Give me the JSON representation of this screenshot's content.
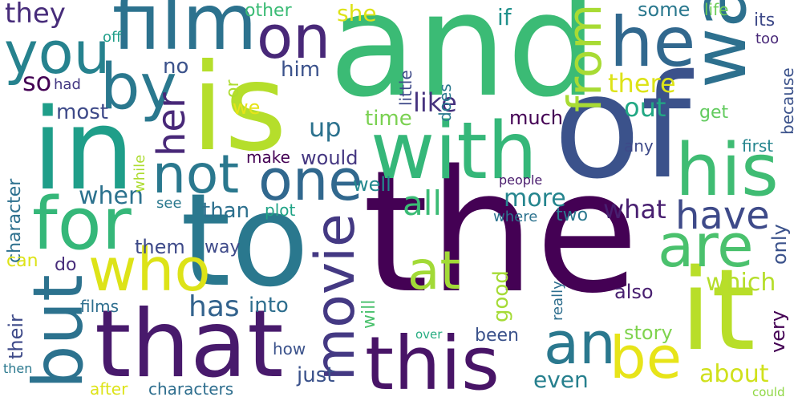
{
  "words": [
    {
      "id": "the",
      "text": "the",
      "color": "#440154"
    },
    {
      "id": "and",
      "text": "and",
      "color": "#3bbb75"
    },
    {
      "id": "of",
      "text": "of",
      "color": "#3b528b"
    },
    {
      "id": "to",
      "text": "to",
      "color": "#2a788e"
    },
    {
      "id": "is",
      "text": "is",
      "color": "#b5de2b"
    },
    {
      "id": "in",
      "text": "in",
      "color": "#1f9e89"
    },
    {
      "id": "that",
      "text": "that",
      "color": "#481a6c"
    },
    {
      "id": "it",
      "text": "it",
      "color": "#b8de29"
    },
    {
      "id": "this",
      "text": "this",
      "color": "#481467"
    },
    {
      "id": "with",
      "text": "with",
      "color": "#35b779"
    },
    {
      "id": "film",
      "text": "film",
      "color": "#2c728e"
    },
    {
      "id": "was",
      "text": "was",
      "color": "#2d708e"
    },
    {
      "id": "his",
      "text": "his",
      "color": "#3fbc73"
    },
    {
      "id": "for",
      "text": "for",
      "color": "#35b779"
    },
    {
      "id": "he",
      "text": "he",
      "color": "#31688e"
    },
    {
      "id": "but",
      "text": "but",
      "color": "#2c728e"
    },
    {
      "id": "you",
      "text": "you",
      "color": "#26828e"
    },
    {
      "id": "by",
      "text": "by",
      "color": "#2a788e"
    },
    {
      "id": "on",
      "text": "on",
      "color": "#482878"
    },
    {
      "id": "who",
      "text": "who",
      "color": "#dde318"
    },
    {
      "id": "are",
      "text": "are",
      "color": "#4ac16d"
    },
    {
      "id": "movie",
      "text": "movie",
      "color": "#443983"
    },
    {
      "id": "one",
      "text": "one",
      "color": "#31688e"
    },
    {
      "id": "not",
      "text": "not",
      "color": "#2a788e"
    },
    {
      "id": "an",
      "text": "an",
      "color": "#2a788e"
    },
    {
      "id": "be",
      "text": "be",
      "color": "#e7e419"
    },
    {
      "id": "at",
      "text": "at",
      "color": "#a2da37"
    },
    {
      "id": "from",
      "text": "from",
      "color": "#a8db34"
    },
    {
      "id": "her",
      "text": "her",
      "color": "#482878"
    },
    {
      "id": "have",
      "text": "have",
      "color": "#3e4a89"
    },
    {
      "id": "all",
      "text": "all",
      "color": "#3bbb75"
    },
    {
      "id": "has",
      "text": "has",
      "color": "#33638d"
    },
    {
      "id": "they",
      "text": "they",
      "color": "#472c7a"
    },
    {
      "id": "like",
      "text": "like",
      "color": "#46327e"
    },
    {
      "id": "there",
      "text": "there",
      "color": "#dde318"
    },
    {
      "id": "out",
      "text": "out",
      "color": "#22a884"
    },
    {
      "id": "what",
      "text": "what",
      "color": "#481f70"
    },
    {
      "id": "more",
      "text": "more",
      "color": "#25858e"
    },
    {
      "id": "about",
      "text": "about",
      "color": "#d0e11c"
    },
    {
      "id": "which",
      "text": "which",
      "color": "#b5de2b"
    },
    {
      "id": "so",
      "text": "so",
      "color": "#440154"
    },
    {
      "id": "up",
      "text": "up",
      "color": "#2c728e"
    },
    {
      "id": "when",
      "text": "when",
      "color": "#2c728e"
    },
    {
      "id": "she",
      "text": "she",
      "color": "#dde318"
    },
    {
      "id": "if",
      "text": "if",
      "color": "#21918c"
    },
    {
      "id": "most",
      "text": "most",
      "color": "#3e4a89"
    },
    {
      "id": "time",
      "text": "time",
      "color": "#7ad151"
    },
    {
      "id": "even",
      "text": "even",
      "color": "#27808e"
    },
    {
      "id": "into",
      "text": "into",
      "color": "#2e6e8e"
    },
    {
      "id": "than",
      "text": "than",
      "color": "#2d708e"
    },
    {
      "id": "would",
      "text": "would",
      "color": "#453781"
    },
    {
      "id": "some",
      "text": "some",
      "color": "#2a788e"
    },
    {
      "id": "very",
      "text": "very",
      "color": "#440154"
    },
    {
      "id": "just",
      "text": "just",
      "color": "#3b528b"
    },
    {
      "id": "well",
      "text": "well",
      "color": "#23898e"
    },
    {
      "id": "good",
      "text": "good",
      "color": "#a5db36"
    },
    {
      "id": "their",
      "text": "their",
      "color": "#3e4a89"
    },
    {
      "id": "story",
      "text": "story",
      "color": "#7fd34e"
    },
    {
      "id": "also",
      "text": "also",
      "color": "#481f70"
    },
    {
      "id": "only",
      "text": "only",
      "color": "#3b528b"
    },
    {
      "id": "much",
      "text": "much",
      "color": "#440154"
    },
    {
      "id": "no",
      "text": "no",
      "color": "#3b528b"
    },
    {
      "id": "him",
      "text": "him",
      "color": "#3b528b"
    },
    {
      "id": "other",
      "text": "other",
      "color": "#3bbb75"
    },
    {
      "id": "get",
      "text": "get",
      "color": "#63cb5f"
    },
    {
      "id": "character",
      "text": "character",
      "color": "#2d708e"
    },
    {
      "id": "two",
      "text": "two",
      "color": "#2a788e"
    },
    {
      "id": "them",
      "text": "them",
      "color": "#3e4a89"
    },
    {
      "id": "can",
      "text": "can",
      "color": "#dde318"
    },
    {
      "id": "make",
      "text": "make",
      "color": "#440154"
    },
    {
      "id": "way",
      "text": "way",
      "color": "#3e4a89"
    },
    {
      "id": "its",
      "text": "its",
      "color": "#3e4a89"
    },
    {
      "id": "we",
      "text": "we",
      "color": "#e7e419"
    },
    {
      "id": "been",
      "text": "been",
      "color": "#3b528b"
    },
    {
      "id": "films",
      "text": "films",
      "color": "#2e6e8e"
    },
    {
      "id": "first",
      "text": "first",
      "color": "#25858e"
    },
    {
      "id": "does",
      "text": "does",
      "color": "#2a788e"
    },
    {
      "id": "because",
      "text": "because",
      "color": "#3b528b"
    },
    {
      "id": "or",
      "text": "or",
      "color": "#addc30"
    },
    {
      "id": "do",
      "text": "do",
      "color": "#472c7a"
    },
    {
      "id": "will",
      "text": "will",
      "color": "#4ac16d"
    },
    {
      "id": "life",
      "text": "life",
      "color": "#6ccd5a"
    },
    {
      "id": "plot",
      "text": "plot",
      "color": "#20a386"
    },
    {
      "id": "any",
      "text": "any",
      "color": "#3e4a89"
    },
    {
      "id": "little",
      "text": "little",
      "color": "#3e4a89"
    },
    {
      "id": "characters",
      "text": "characters",
      "color": "#2e6e8e"
    },
    {
      "id": "after",
      "text": "after",
      "color": "#dde318"
    },
    {
      "id": "how",
      "text": "how",
      "color": "#3b528b"
    },
    {
      "id": "where",
      "text": "where",
      "color": "#2c728e"
    },
    {
      "id": "see",
      "text": "see",
      "color": "#2a788e"
    },
    {
      "id": "really",
      "text": "really",
      "color": "#2e6e8e"
    },
    {
      "id": "while",
      "text": "while",
      "color": "#addc30"
    },
    {
      "id": "people",
      "text": "people",
      "color": "#481a6c"
    },
    {
      "id": "too",
      "text": "too",
      "color": "#482878"
    },
    {
      "id": "off",
      "text": "off",
      "color": "#1f9e89"
    },
    {
      "id": "had",
      "text": "had",
      "color": "#443983"
    },
    {
      "id": "then",
      "text": "then",
      "color": "#2a788e"
    },
    {
      "id": "over",
      "text": "over",
      "color": "#27ad81"
    },
    {
      "id": "could",
      "text": "could",
      "color": "#8fd744"
    }
  ]
}
